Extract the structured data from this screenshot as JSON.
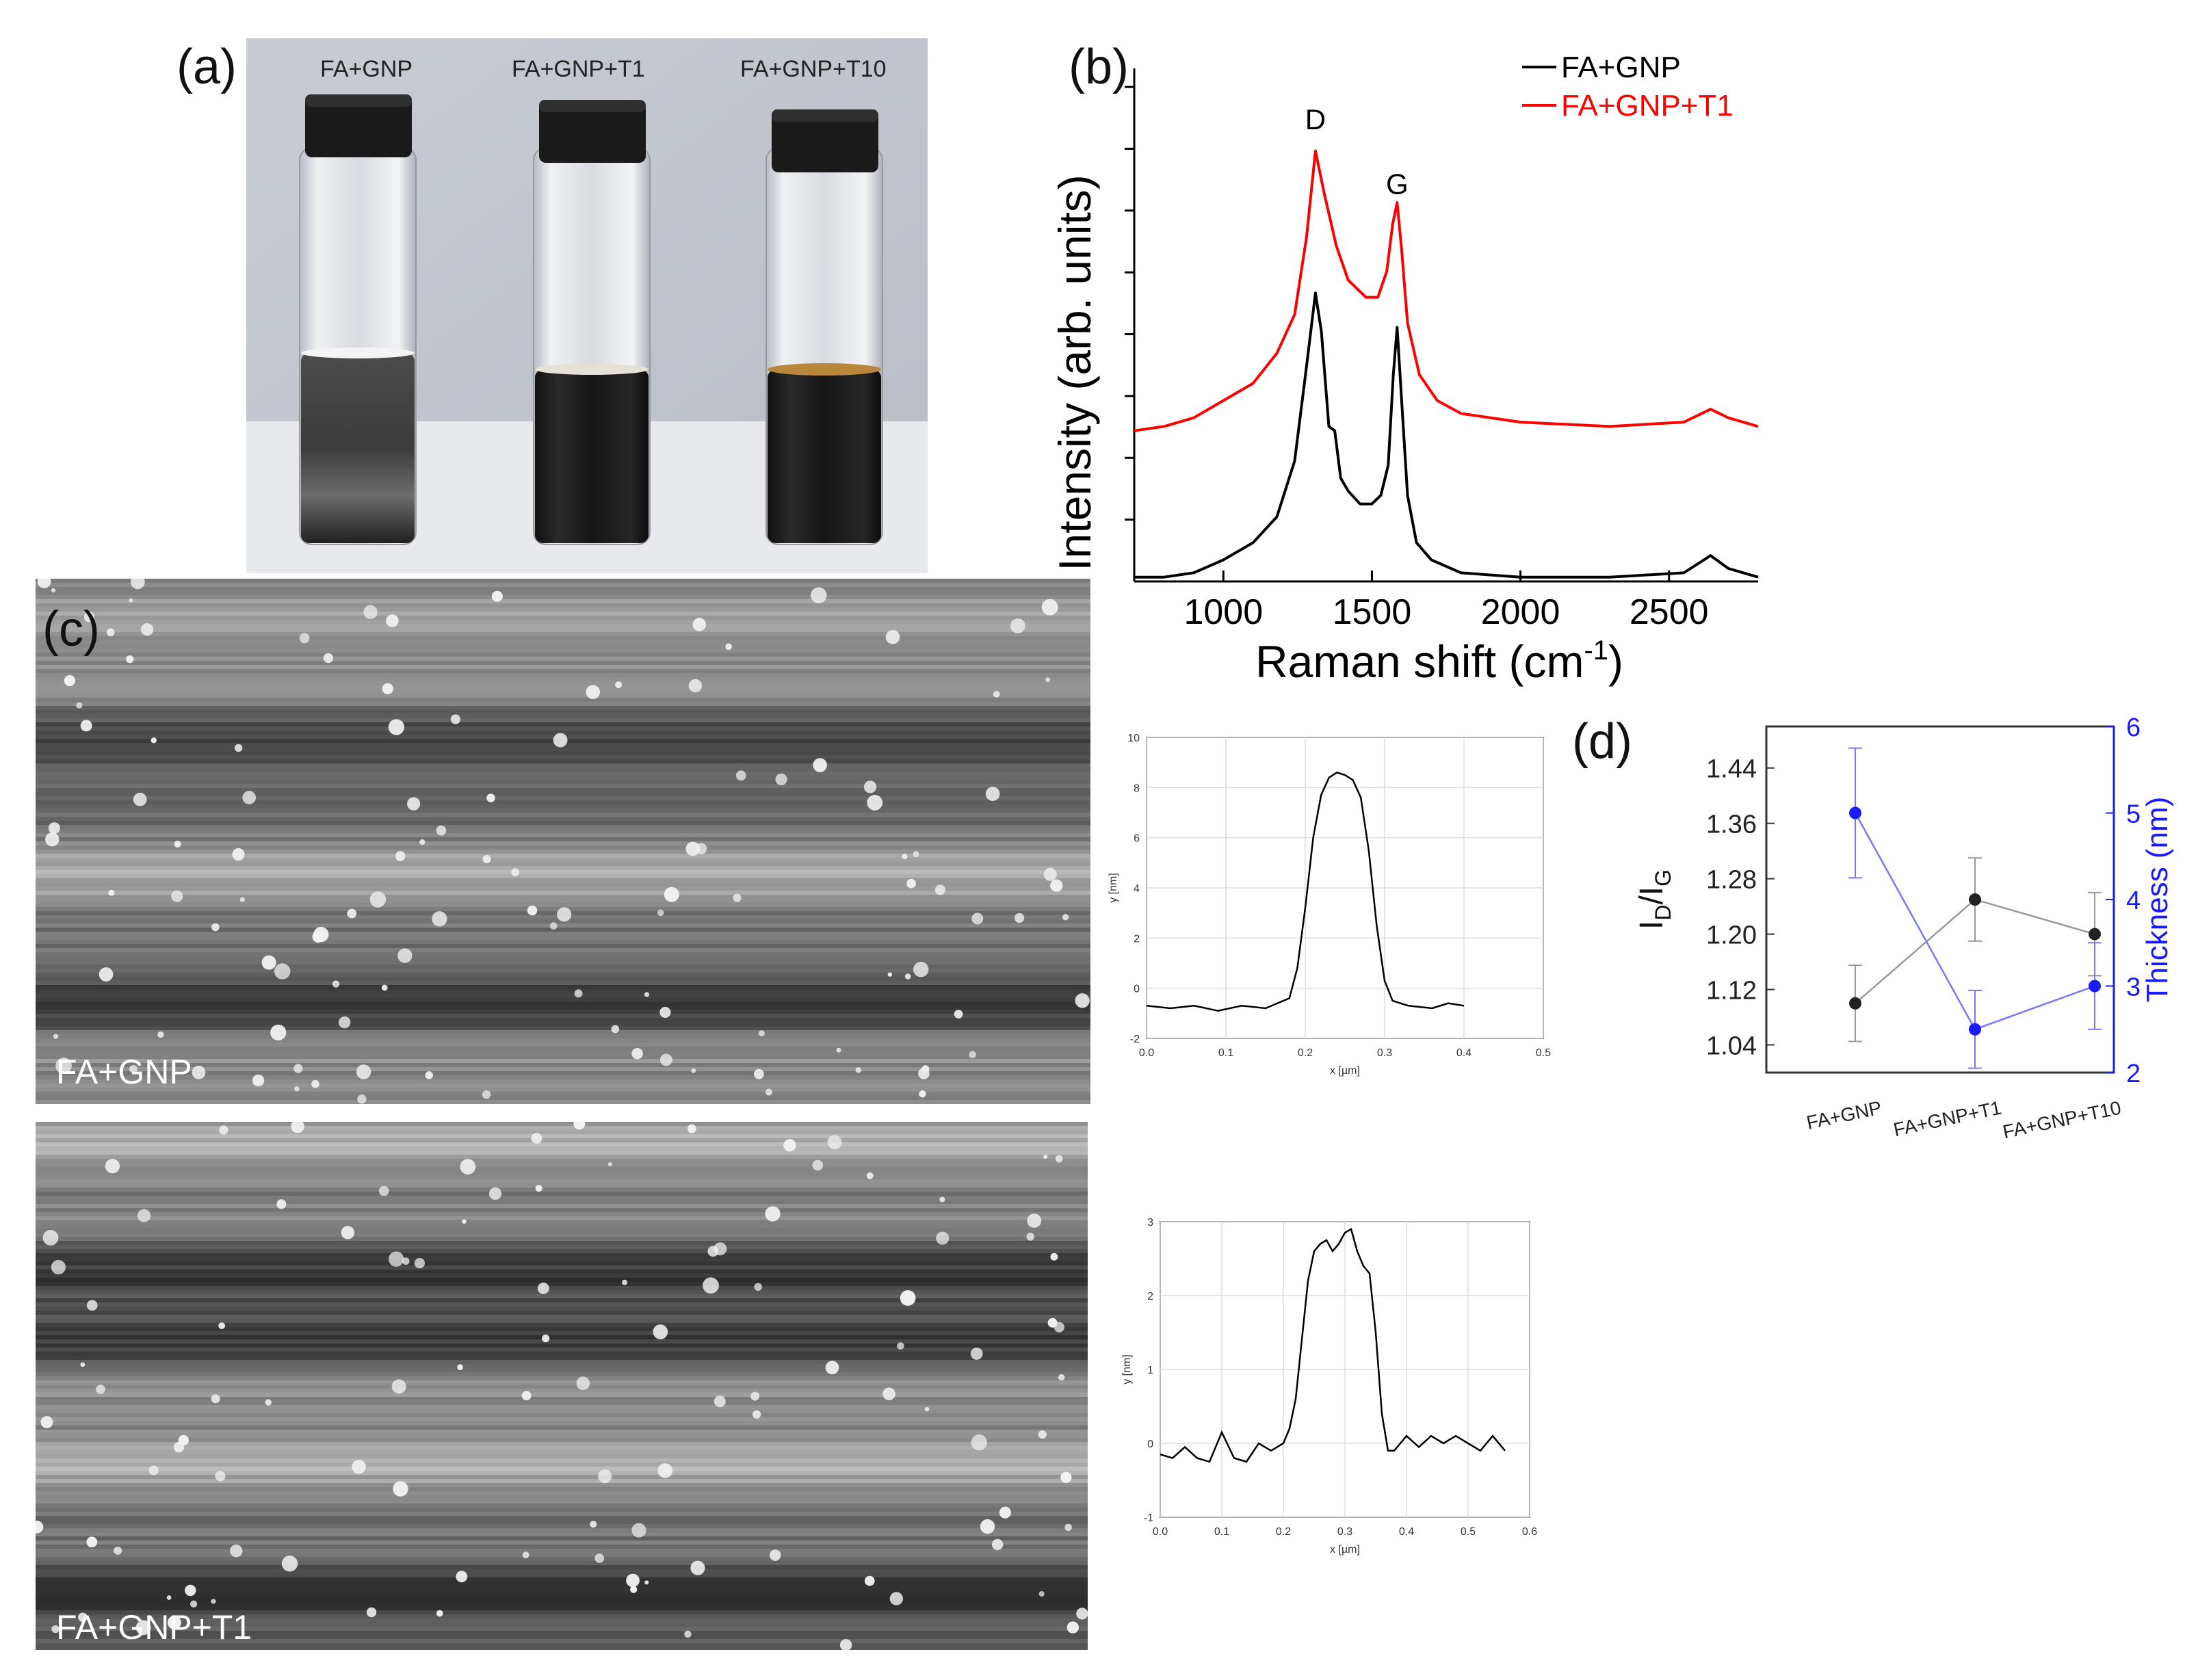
{
  "figure": {
    "panel_a": {
      "label": "(a)",
      "vial_labels": [
        "FA+GNP",
        "FA+GNP+T1",
        "FA+GNP+T10"
      ]
    },
    "panel_b": {
      "label": "(b)"
    },
    "panel_c": {
      "label": "(c)",
      "sample_labels": [
        "FA+GNP",
        "FA+GNP+T1"
      ]
    },
    "panel_d": {
      "label": "(d)"
    }
  },
  "chart_data": [
    {
      "id": "raman",
      "type": "line",
      "title": "",
      "xlabel": "Raman shift (cm",
      "xlabel_sup": "-1",
      "xlabel_close": ")",
      "ylabel": "Intensity (arb. units)",
      "xlim": [
        700,
        2800
      ],
      "ylim": [
        0,
        1
      ],
      "x_ticks": [
        "1000",
        "1500",
        "2000",
        "2500"
      ],
      "x_tick_values": [
        1000,
        1500,
        2000,
        2500
      ],
      "peak_labels": [
        {
          "text": "D",
          "x": 1310,
          "y": 1.05
        },
        {
          "text": "G",
          "x": 1585,
          "y": 0.9
        }
      ],
      "legend": [
        "FA+GNP",
        "FA+GNP+T1"
      ],
      "series": [
        {
          "name": "FA+GNP",
          "color": "#000000",
          "points": [
            [
              700,
              0.01
            ],
            [
              800,
              0.01
            ],
            [
              900,
              0.02
            ],
            [
              1000,
              0.05
            ],
            [
              1100,
              0.09
            ],
            [
              1180,
              0.15
            ],
            [
              1240,
              0.28
            ],
            [
              1280,
              0.5
            ],
            [
              1310,
              0.67
            ],
            [
              1330,
              0.58
            ],
            [
              1355,
              0.36
            ],
            [
              1375,
              0.35
            ],
            [
              1395,
              0.24
            ],
            [
              1420,
              0.21
            ],
            [
              1460,
              0.18
            ],
            [
              1500,
              0.18
            ],
            [
              1530,
              0.2
            ],
            [
              1555,
              0.27
            ],
            [
              1572,
              0.48
            ],
            [
              1585,
              0.59
            ],
            [
              1600,
              0.42
            ],
            [
              1620,
              0.2
            ],
            [
              1650,
              0.09
            ],
            [
              1700,
              0.05
            ],
            [
              1800,
              0.02
            ],
            [
              2000,
              0.01
            ],
            [
              2300,
              0.01
            ],
            [
              2550,
              0.02
            ],
            [
              2640,
              0.06
            ],
            [
              2700,
              0.03
            ],
            [
              2800,
              0.01
            ]
          ]
        },
        {
          "name": "FA+GNP+T1",
          "color": "#ff0000",
          "points": [
            [
              700,
              0.35
            ],
            [
              800,
              0.36
            ],
            [
              900,
              0.38
            ],
            [
              1000,
              0.42
            ],
            [
              1100,
              0.46
            ],
            [
              1180,
              0.53
            ],
            [
              1240,
              0.62
            ],
            [
              1280,
              0.8
            ],
            [
              1310,
              1.0
            ],
            [
              1340,
              0.9
            ],
            [
              1380,
              0.78
            ],
            [
              1420,
              0.7
            ],
            [
              1480,
              0.66
            ],
            [
              1520,
              0.66
            ],
            [
              1550,
              0.72
            ],
            [
              1570,
              0.83
            ],
            [
              1585,
              0.88
            ],
            [
              1600,
              0.77
            ],
            [
              1620,
              0.6
            ],
            [
              1660,
              0.48
            ],
            [
              1720,
              0.42
            ],
            [
              1800,
              0.39
            ],
            [
              2000,
              0.37
            ],
            [
              2300,
              0.36
            ],
            [
              2550,
              0.37
            ],
            [
              2640,
              0.4
            ],
            [
              2700,
              0.38
            ],
            [
              2800,
              0.36
            ]
          ]
        }
      ]
    },
    {
      "id": "afm-profile-1",
      "type": "line",
      "xlabel": "x [µm]",
      "ylabel": "y [nm]",
      "xlim": [
        0,
        0.5
      ],
      "ylim": [
        -2,
        10
      ],
      "x_ticks": [
        "0.0",
        "0.1",
        "0.2",
        "0.3",
        "0.4",
        "0.5"
      ],
      "x_tick_values": [
        0,
        0.1,
        0.2,
        0.3,
        0.4,
        0.5
      ],
      "y_ticks": [
        "-2",
        "0",
        "2",
        "4",
        "6",
        "8",
        "10"
      ],
      "y_tick_values": [
        -2,
        0,
        2,
        4,
        6,
        8,
        10
      ],
      "series": [
        {
          "name": "profile",
          "color": "#000000",
          "points": [
            [
              0.0,
              -0.7
            ],
            [
              0.03,
              -0.8
            ],
            [
              0.06,
              -0.7
            ],
            [
              0.09,
              -0.9
            ],
            [
              0.12,
              -0.7
            ],
            [
              0.15,
              -0.8
            ],
            [
              0.18,
              -0.4
            ],
            [
              0.19,
              0.8
            ],
            [
              0.2,
              3.2
            ],
            [
              0.21,
              6.0
            ],
            [
              0.22,
              7.7
            ],
            [
              0.23,
              8.4
            ],
            [
              0.24,
              8.6
            ],
            [
              0.25,
              8.5
            ],
            [
              0.26,
              8.3
            ],
            [
              0.27,
              7.6
            ],
            [
              0.28,
              5.5
            ],
            [
              0.29,
              2.5
            ],
            [
              0.3,
              0.3
            ],
            [
              0.31,
              -0.5
            ],
            [
              0.33,
              -0.7
            ],
            [
              0.36,
              -0.8
            ],
            [
              0.38,
              -0.6
            ],
            [
              0.4,
              -0.7
            ]
          ]
        }
      ]
    },
    {
      "id": "afm-profile-2",
      "type": "line",
      "xlabel": "x [µm]",
      "ylabel": "y [nm]",
      "xlim": [
        0,
        0.6
      ],
      "ylim": [
        -1,
        3
      ],
      "x_ticks": [
        "0.0",
        "0.1",
        "0.2",
        "0.3",
        "0.4",
        "0.5",
        "0.6"
      ],
      "x_tick_values": [
        0,
        0.1,
        0.2,
        0.3,
        0.4,
        0.5,
        0.6
      ],
      "y_ticks": [
        "-1",
        "0",
        "1",
        "2",
        "3"
      ],
      "y_tick_values": [
        -1,
        0,
        1,
        2,
        3
      ],
      "series": [
        {
          "name": "profile",
          "color": "#000000",
          "points": [
            [
              0.0,
              -0.15
            ],
            [
              0.02,
              -0.2
            ],
            [
              0.04,
              -0.05
            ],
            [
              0.06,
              -0.2
            ],
            [
              0.08,
              -0.25
            ],
            [
              0.1,
              0.15
            ],
            [
              0.12,
              -0.2
            ],
            [
              0.14,
              -0.25
            ],
            [
              0.16,
              0.0
            ],
            [
              0.18,
              -0.1
            ],
            [
              0.2,
              0.0
            ],
            [
              0.21,
              0.2
            ],
            [
              0.22,
              0.6
            ],
            [
              0.23,
              1.4
            ],
            [
              0.24,
              2.2
            ],
            [
              0.25,
              2.6
            ],
            [
              0.26,
              2.7
            ],
            [
              0.27,
              2.75
            ],
            [
              0.28,
              2.6
            ],
            [
              0.29,
              2.7
            ],
            [
              0.3,
              2.85
            ],
            [
              0.31,
              2.9
            ],
            [
              0.32,
              2.6
            ],
            [
              0.33,
              2.4
            ],
            [
              0.34,
              2.3
            ],
            [
              0.35,
              1.5
            ],
            [
              0.36,
              0.4
            ],
            [
              0.37,
              -0.1
            ],
            [
              0.38,
              -0.1
            ],
            [
              0.4,
              0.1
            ],
            [
              0.42,
              -0.05
            ],
            [
              0.44,
              0.1
            ],
            [
              0.46,
              0.0
            ],
            [
              0.48,
              0.1
            ],
            [
              0.5,
              0.0
            ],
            [
              0.52,
              -0.1
            ],
            [
              0.54,
              0.1
            ],
            [
              0.56,
              -0.1
            ]
          ]
        }
      ]
    },
    {
      "id": "id-ig-thickness",
      "type": "scatter",
      "categories": [
        "FA+GNP",
        "FA+GNP+T1",
        "FA+GNP+T10"
      ],
      "ylabel": "I",
      "ylabel_sub1": "D",
      "ylabel_mid": "/I",
      "ylabel_sub2": "G",
      "y2label": "Thickness (nm)",
      "ylim": [
        1.0,
        1.5
      ],
      "y_ticks": [
        "1.04",
        "1.12",
        "1.20",
        "1.28",
        "1.36",
        "1.44"
      ],
      "y_tick_values": [
        1.04,
        1.12,
        1.2,
        1.28,
        1.36,
        1.44
      ],
      "y2lim": [
        2,
        6
      ],
      "y2_ticks": [
        "2",
        "3",
        "4",
        "5",
        "6"
      ],
      "y2_tick_values": [
        2,
        3,
        4,
        5,
        6
      ],
      "series": [
        {
          "name": "ID/IG",
          "axis": "left",
          "color": "#222222",
          "line_color": "#999999",
          "values": [
            1.1,
            1.25,
            1.2
          ],
          "errors": [
            0.055,
            0.06,
            0.06
          ]
        },
        {
          "name": "Thickness",
          "axis": "right",
          "color": "#1a1aff",
          "line_color": "#7777ff",
          "values": [
            5.0,
            2.5,
            3.0
          ],
          "errors": [
            0.75,
            0.45,
            0.5
          ]
        }
      ]
    }
  ]
}
